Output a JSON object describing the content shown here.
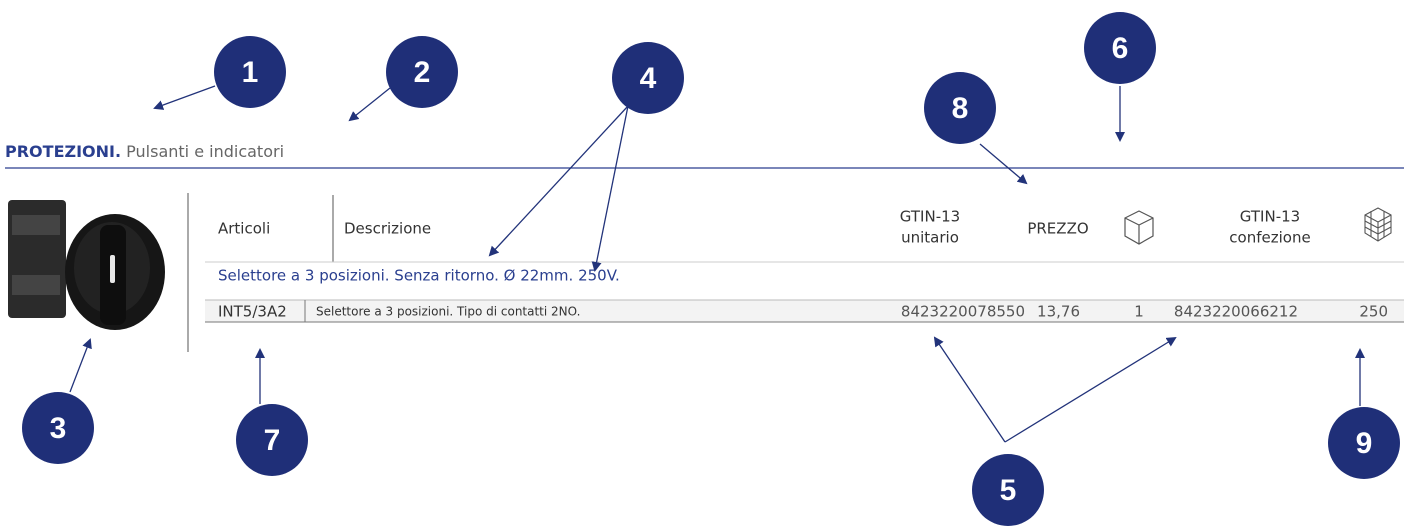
{
  "header": {
    "category": "PROTEZIONI.",
    "subtitle": "Pulsanti e indicatori"
  },
  "table": {
    "headers": [
      "Articoli",
      "Descrizione",
      [
        "GTIN-13",
        "unitario"
      ],
      "PREZZO",
      [
        "GTIN-13",
        "confezione"
      ]
    ],
    "group_title": "Selettore a 3 posizioni. Senza ritorno. Ø 22mm. 250V.",
    "rows": [
      [
        "INT5/3A2",
        "Selettore a 3 posizioni. Tipo di contatti 2NO.",
        "8423220078550",
        "13,76",
        "1",
        "8423220066212",
        "250"
      ]
    ]
  },
  "callouts": [
    "1",
    "2",
    "3",
    "4",
    "5",
    "6",
    "7",
    "8",
    "9"
  ]
}
